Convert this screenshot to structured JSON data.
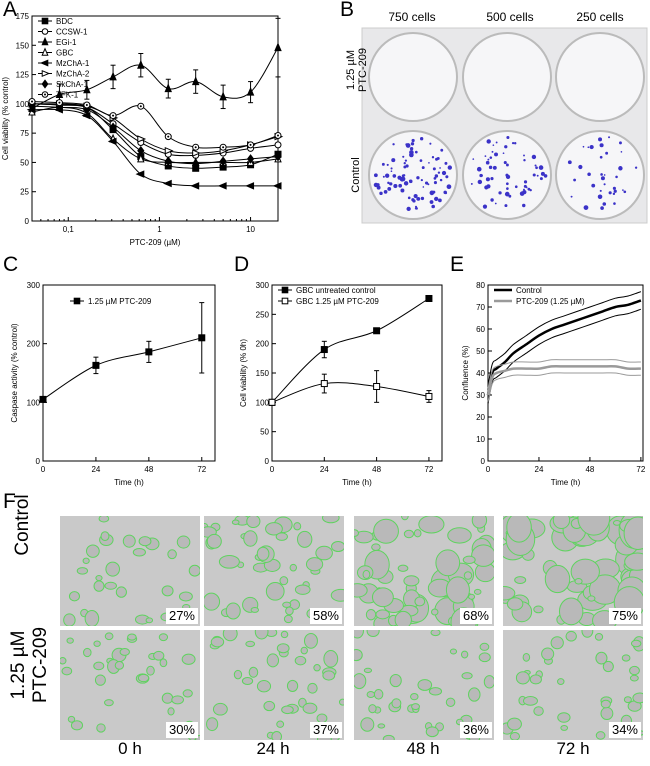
{
  "panel_letters": {
    "A": "A",
    "B": "B",
    "C": "C",
    "D": "D",
    "E": "E",
    "F": "F"
  },
  "chart_data": [
    {
      "id": "A",
      "type": "line",
      "xlabel": "PTC-209 (µM)",
      "ylabel": "Cell viability (% control)",
      "xscale": "log",
      "xlim": [
        0.04,
        20
      ],
      "ylim": [
        0,
        175
      ],
      "xticks": [
        {
          "v": 0.1,
          "label": "0,1"
        },
        {
          "v": 1,
          "label": "1"
        },
        {
          "v": 10,
          "label": "10"
        }
      ],
      "yticks": [
        0,
        25,
        50,
        75,
        100,
        125,
        150,
        175
      ],
      "legend": "top-left",
      "x": [
        0.04,
        0.08,
        0.16,
        0.31,
        0.625,
        1.25,
        2.5,
        5,
        10,
        20
      ],
      "series": [
        {
          "name": "BDC",
          "marker": "square",
          "values": [
            100,
            99,
            97,
            78,
            55,
            47,
            45,
            46,
            48,
            57
          ]
        },
        {
          "name": "CCSW-1",
          "marker": "circle-open",
          "values": [
            100,
            99,
            97,
            83,
            67,
            57,
            56,
            58,
            62,
            65
          ]
        },
        {
          "name": "EGi-1",
          "marker": "triangle-up",
          "values": [
            96,
            108,
            112,
            123,
            133,
            113,
            119,
            106,
            110,
            148
          ],
          "errors": [
            5,
            9,
            8,
            10,
            10,
            8,
            10,
            10,
            9,
            25
          ]
        },
        {
          "name": "GBC",
          "marker": "triangle-up-open",
          "values": [
            93,
            97,
            92,
            70,
            53,
            50,
            50,
            50,
            50,
            53
          ]
        },
        {
          "name": "MzChA-1",
          "marker": "triangle-left",
          "values": [
            95,
            95,
            90,
            68,
            40,
            32,
            30,
            30,
            30,
            30
          ]
        },
        {
          "name": "MzChA-2",
          "marker": "triangle-right-open",
          "values": [
            100,
            100,
            98,
            88,
            70,
            60,
            58,
            60,
            65,
            72
          ]
        },
        {
          "name": "SkChA-1",
          "marker": "diamond",
          "values": [
            98,
            97,
            95,
            80,
            60,
            51,
            49,
            51,
            53,
            55
          ]
        },
        {
          "name": "TFK-1",
          "marker": "circle-open-dot",
          "values": [
            102,
            101,
            99,
            90,
            98,
            72,
            63,
            63,
            65,
            73
          ]
        }
      ]
    },
    {
      "id": "C",
      "type": "line",
      "xlabel": "Time (h)",
      "ylabel": "Caspase activity (% control)",
      "xlim": [
        0,
        78
      ],
      "ylim": [
        0,
        300
      ],
      "xticks": [
        0,
        24,
        48,
        72
      ],
      "yticks": [
        0,
        100,
        200,
        300
      ],
      "legend": "top-left",
      "series": [
        {
          "name": "1.25 µM PTC-209",
          "marker": "square",
          "x": [
            0,
            24,
            48,
            72
          ],
          "values": [
            105,
            163,
            186,
            210
          ],
          "errors": [
            0,
            14,
            18,
            60
          ]
        }
      ]
    },
    {
      "id": "D",
      "type": "line",
      "xlabel": "Time (h)",
      "ylabel": "Cell viability (% 0h)",
      "xlim": [
        0,
        78
      ],
      "ylim": [
        0,
        300
      ],
      "xticks": [
        0,
        24,
        48,
        72
      ],
      "yticks": [
        0,
        50,
        100,
        150,
        200,
        250,
        300
      ],
      "legend": "top-left",
      "series": [
        {
          "name": "GBC untreated control",
          "marker": "square",
          "x": [
            0,
            24,
            48,
            72
          ],
          "values": [
            100,
            190,
            222,
            277
          ],
          "errors": [
            0,
            14,
            4,
            5
          ]
        },
        {
          "name": "GBC 1.25 µM PTC-209",
          "marker": "square-open",
          "x": [
            0,
            24,
            48,
            72
          ],
          "values": [
            100,
            132,
            127,
            110
          ],
          "errors": [
            0,
            16,
            27,
            10
          ]
        }
      ]
    },
    {
      "id": "E",
      "type": "line",
      "xlabel": "Time (h)",
      "ylabel": "Confluence (%)",
      "xlim": [
        0,
        73
      ],
      "ylim": [
        0,
        80
      ],
      "xticks": [
        0,
        24,
        48,
        72
      ],
      "yticks": [
        0,
        10,
        20,
        30,
        40,
        50,
        60,
        70,
        80
      ],
      "legend": "top-left",
      "series": [
        {
          "name": "Control",
          "color": "#000000",
          "x": [
            0,
            2,
            4,
            8,
            12,
            18,
            24,
            30,
            36,
            42,
            48,
            54,
            60,
            66,
            72
          ],
          "values": [
            30,
            40,
            42,
            45,
            49,
            53,
            57,
            60,
            62,
            64,
            66,
            68,
            70,
            71,
            73
          ],
          "band": 4
        },
        {
          "name": "PTC-209 (1.25 µM)",
          "color": "#9a9a9a",
          "x": [
            0,
            2,
            4,
            8,
            12,
            18,
            24,
            30,
            36,
            42,
            48,
            54,
            60,
            66,
            72
          ],
          "values": [
            30,
            38,
            40,
            41,
            42,
            42,
            42,
            43,
            43,
            43,
            43,
            43,
            43,
            42,
            42
          ],
          "band": 3
        }
      ]
    }
  ],
  "panel_b": {
    "columns": [
      "750 cells",
      "500 cells",
      "250 cells"
    ],
    "rows": [
      "1.25 µM\nPTC-209",
      "Control"
    ]
  },
  "panel_f": {
    "rows": [
      "Control",
      "1.25 µM\nPTC-209"
    ],
    "columns": [
      "0 h",
      "24 h",
      "48 h",
      "72 h"
    ],
    "percentages": [
      [
        "27%",
        "58%",
        "68%",
        "75%"
      ],
      [
        "30%",
        "37%",
        "36%",
        "34%"
      ]
    ]
  }
}
